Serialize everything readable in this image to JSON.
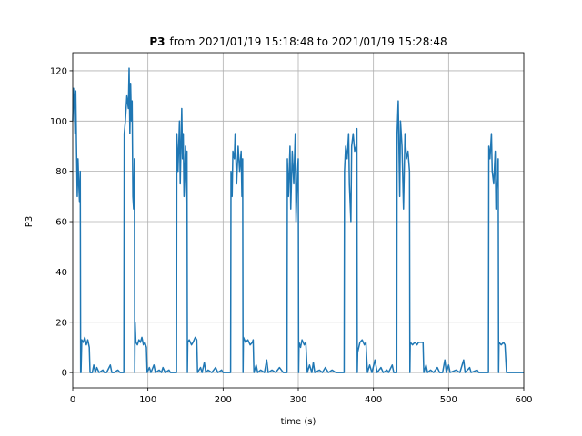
{
  "chart_data": {
    "type": "line",
    "title": [
      "P3",
      "from 2021/01/19 15:18:48 to 2021/01/19 15:28:48"
    ],
    "x_label": "time (s)",
    "y_label": "P3",
    "xlim": [
      0,
      600
    ],
    "ylim": [
      -6.1,
      127.2
    ],
    "xticks": [
      0,
      100,
      200,
      300,
      400,
      500,
      600
    ],
    "yticks": [
      0,
      20,
      40,
      60,
      80,
      100,
      120
    ],
    "grid": true,
    "series": [
      {
        "color": "#1f77b4",
        "x": [
          0,
          1,
          2,
          3,
          4,
          5,
          6,
          7,
          8,
          9,
          10,
          10.5,
          11,
          12,
          14,
          16,
          18,
          20,
          22,
          23,
          26,
          28,
          30,
          32,
          35,
          40,
          42,
          45,
          50,
          52,
          55,
          60,
          63,
          67,
          68,
          68.5,
          70,
          72,
          74,
          75,
          76,
          77,
          78,
          79,
          80,
          81,
          82,
          82.5,
          83,
          84,
          86,
          88,
          90,
          92,
          94,
          96,
          98,
          99,
          102,
          104,
          108,
          110,
          115,
          118,
          120,
          123,
          128,
          130,
          135,
          138,
          138.5,
          140,
          142,
          143,
          145,
          146,
          147,
          148,
          150,
          151,
          152,
          152.5,
          153,
          155,
          158,
          160,
          163,
          165,
          166,
          170,
          172,
          175,
          177,
          180,
          185,
          190,
          193,
          198,
          200,
          205,
          209,
          210,
          210.5,
          212,
          213,
          215,
          216,
          218,
          220,
          222,
          224,
          225,
          226,
          226.5,
          227,
          230,
          233,
          236,
          239,
          240,
          241,
          244,
          246,
          250,
          255,
          258,
          260,
          265,
          270,
          275,
          280,
          284,
          285,
          285.5,
          287,
          289,
          290,
          292,
          294,
          296,
          297,
          299,
          300,
          300.5,
          301,
          303,
          305,
          308,
          310,
          312,
          315,
          318,
          320,
          322,
          328,
          332,
          336,
          340,
          345,
          350,
          355,
          360,
          361,
          361.5,
          363,
          365,
          367,
          368,
          370,
          371,
          373,
          375,
          377,
          378,
          378.5,
          379,
          382,
          385,
          388,
          390,
          392,
          395,
          398,
          402,
          405,
          410,
          413,
          418,
          420,
          425,
          427,
          430,
          431,
          431.5,
          433,
          435,
          436,
          438,
          440,
          442,
          444,
          446,
          448,
          448.5,
          449,
          452,
          455,
          458,
          460,
          466,
          467,
          470,
          472,
          476,
          480,
          485,
          488,
          492,
          495,
          497,
          500,
          502,
          510,
          515,
          520,
          522,
          528,
          530,
          538,
          540,
          545,
          552,
          553,
          553.5,
          555,
          557,
          558,
          560,
          562,
          563,
          565,
          566,
          566.5,
          567,
          570,
          573,
          575,
          577,
          600
        ],
        "values": [
          100,
          113,
          108,
          95,
          112,
          90,
          70,
          85,
          75,
          68,
          80,
          0,
          0,
          13,
          12,
          14,
          11,
          13,
          10,
          0,
          0,
          3,
          0,
          2,
          0,
          1,
          0,
          0,
          3,
          0,
          0,
          1,
          0,
          0,
          0,
          95,
          100,
          110,
          105,
          121,
          95,
          115,
          100,
          108,
          70,
          65,
          85,
          0,
          20,
          12,
          11,
          13,
          12,
          14,
          11,
          12,
          10,
          0,
          2,
          0,
          3,
          0,
          1,
          0,
          2,
          0,
          1,
          0,
          0,
          0,
          95,
          80,
          100,
          75,
          105,
          85,
          95,
          70,
          90,
          65,
          88,
          0,
          12,
          13,
          11,
          12,
          14,
          13,
          0,
          2,
          0,
          4,
          0,
          1,
          0,
          2,
          0,
          1,
          0,
          0,
          0,
          0,
          80,
          70,
          88,
          85,
          95,
          75,
          90,
          80,
          88,
          70,
          85,
          0,
          14,
          12,
          13,
          11,
          12,
          13,
          0,
          3,
          0,
          1,
          0,
          5,
          0,
          1,
          0,
          2,
          0,
          0,
          0,
          85,
          70,
          90,
          65,
          88,
          75,
          95,
          60,
          80,
          85,
          0,
          12,
          10,
          13,
          11,
          12,
          0,
          3,
          0,
          4,
          0,
          1,
          0,
          2,
          0,
          1,
          0,
          0,
          0,
          0,
          80,
          90,
          85,
          95,
          75,
          60,
          90,
          95,
          88,
          90,
          97,
          0,
          8,
          12,
          13,
          11,
          12,
          0,
          3,
          0,
          5,
          0,
          2,
          0,
          1,
          0,
          3,
          0,
          0,
          0,
          95,
          108,
          70,
          100,
          90,
          65,
          95,
          85,
          88,
          80,
          0,
          12,
          11,
          12,
          11,
          12,
          12,
          0,
          3,
          0,
          1,
          0,
          2,
          0,
          0,
          5,
          0,
          3,
          0,
          1,
          0,
          5,
          0,
          2,
          0,
          1,
          0,
          0,
          0,
          0,
          90,
          85,
          95,
          80,
          75,
          88,
          65,
          80,
          85,
          0,
          12,
          11,
          12,
          11,
          0,
          0
        ]
      }
    ]
  }
}
